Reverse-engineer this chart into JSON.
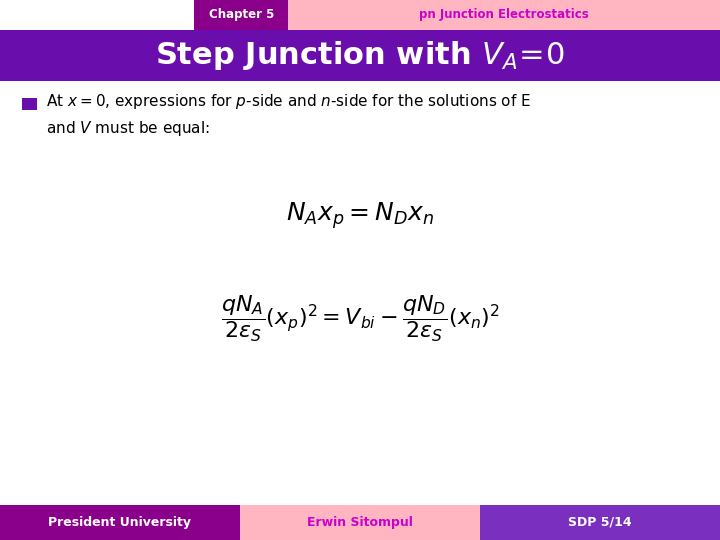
{
  "header_left_text": "Chapter 5",
  "header_right_text": "pn Junction Electrostatics",
  "header_left_bg": "#8B008B",
  "header_right_bg": "#FFB6C1",
  "header_text_color_left": "white",
  "header_text_color_right": "#CC00CC",
  "title_bg": "#6A0DAD",
  "title_text_color": "white",
  "body_bg": "white",
  "bullet_color": "#6A0DAD",
  "footer_left_text": "President University",
  "footer_center_text": "Erwin Sitompul",
  "footer_right_text": "SDP 5/14",
  "footer_left_bg": "#8B008B",
  "footer_center_bg": "#FFB6C1",
  "footer_right_bg": "#7B2FBE",
  "footer_text_color_left": "white",
  "footer_text_color_center": "#CC00CC",
  "footer_text_color_right": "white",
  "fig_width": 7.2,
  "fig_height": 5.4,
  "dpi": 100
}
